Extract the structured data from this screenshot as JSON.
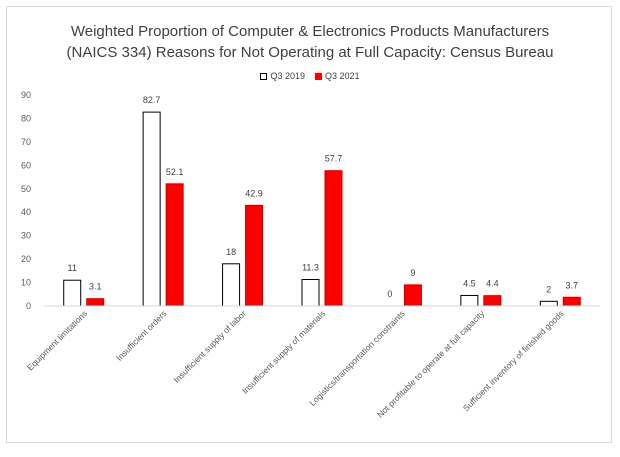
{
  "chart_data": {
    "type": "bar",
    "title_lines": [
      "Weighted Proportion of Computer & Electronics Products Manufacturers",
      "(NAICS 334) Reasons for Not Operating at Full Capacity: Census Bureau"
    ],
    "categories": [
      "Equipment limitations",
      "Insufficient orders",
      "Insufficient supply of labor",
      "Insufficient supply of materials",
      "Logistics/transportation constraints",
      "Not profitable to operate at full capacity",
      "Sufficient inventory of finished goods"
    ],
    "series": [
      {
        "name": "Q3 2019",
        "values": [
          11,
          82.7,
          18,
          11.3,
          0,
          4.5,
          2
        ],
        "labels": [
          "11",
          "82.7",
          "18",
          "11.3",
          "0",
          "4.5",
          "2"
        ],
        "fill": "#ffffff",
        "stroke": "#000000"
      },
      {
        "name": "Q3 2021",
        "values": [
          3.1,
          52.1,
          42.9,
          57.7,
          9,
          4.4,
          3.7
        ],
        "labels": [
          "3.1",
          "52.1",
          "42.9",
          "57.7",
          "9",
          "4.4",
          "3.7"
        ],
        "fill": "#ff0000",
        "stroke": "#c00000"
      }
    ],
    "yticks": [
      "0",
      "10",
      "20",
      "30",
      "40",
      "50",
      "60",
      "70",
      "80",
      "90"
    ],
    "ylim": [
      0,
      90
    ],
    "legend_position": "top",
    "grid": false
  }
}
